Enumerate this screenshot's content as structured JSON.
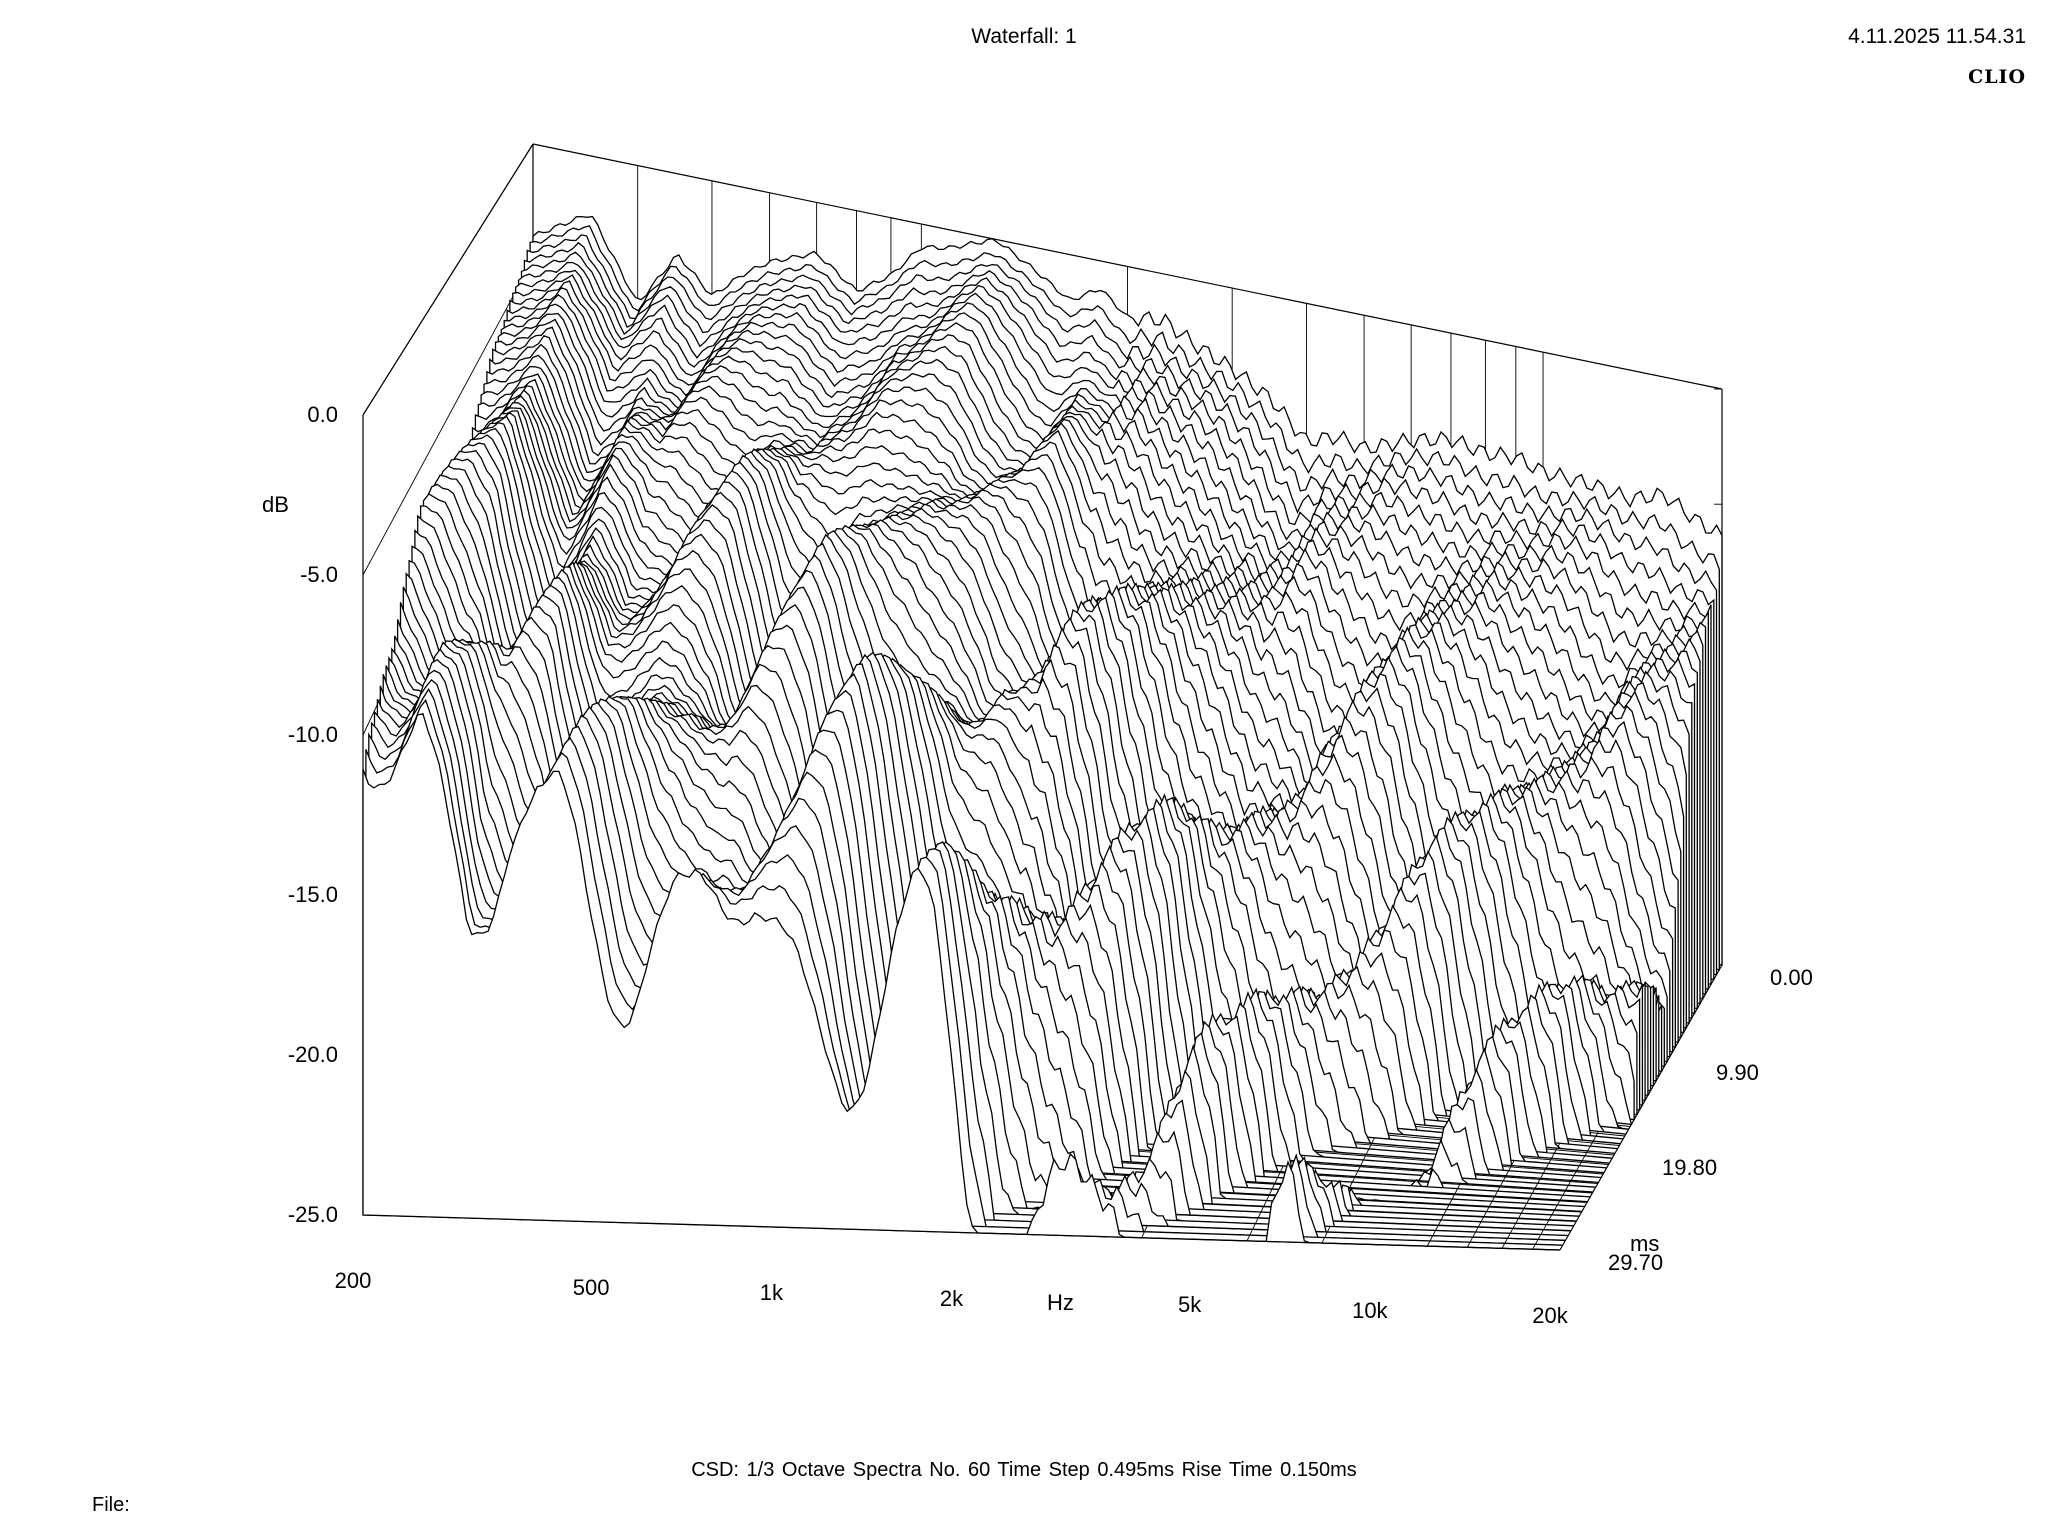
{
  "header": {
    "title": "Waterfall: 1",
    "datetime": "4.11.2025 11.54.31",
    "brand": "CLIO"
  },
  "footer": {
    "csd_info": "CSD:   1/3 Octave   Spectra No. 60   Time Step 0.495ms   Rise Time 0.150ms",
    "file_label": "File:"
  },
  "chart_data": {
    "type": "waterfall",
    "y_axis": {
      "label": "dB",
      "ticks": [
        "0.0",
        "-5.0",
        "-10.0",
        "-15.0",
        "-20.0",
        "-25.0"
      ],
      "values": [
        0,
        -5,
        -10,
        -15,
        -20,
        -25
      ],
      "range": [
        -25,
        0
      ]
    },
    "x_axis": {
      "label": "Hz",
      "scale": "log",
      "ticks": [
        "200",
        "500",
        "1k",
        "2k",
        "5k",
        "10k",
        "20k"
      ],
      "values": [
        200,
        500,
        1000,
        2000,
        5000,
        10000,
        20000
      ],
      "range": [
        200,
        20000
      ]
    },
    "z_axis": {
      "label": "ms",
      "ticks": [
        "0.00",
        "9.90",
        "19.80",
        "29.70"
      ],
      "values": [
        0,
        9.9,
        19.8,
        29.7
      ],
      "range": [
        0,
        29.7
      ]
    },
    "spectra_count": 60,
    "time_step_ms": 0.495,
    "rise_time_ms": 0.15,
    "smoothing": "1/3 Octave",
    "first_spectrum": {
      "freq_hz": [
        200,
        250,
        300,
        350,
        400,
        450,
        500,
        600,
        700,
        800,
        900,
        1000,
        1200,
        1400,
        1600,
        1800,
        2000,
        2300,
        2600,
        3000,
        3500,
        4000,
        4500,
        5000,
        6000,
        7000,
        8000,
        9000,
        10000,
        12000,
        14000,
        16000,
        18000,
        20000
      ],
      "level_db": [
        -4.0,
        -2.5,
        -6.0,
        -3.5,
        -5.0,
        -3.8,
        -3.0,
        -2.2,
        -3.5,
        -2.5,
        -1.0,
        -0.8,
        0.0,
        -1.0,
        -2.0,
        -1.2,
        -2.2,
        -2.0,
        -2.8,
        -3.5,
        -4.5,
        -6.0,
        -5.5,
        -5.8,
        -5.0,
        -4.6,
        -4.9,
        -4.8,
        -5.2,
        -5.3,
        -5.6,
        -5.1,
        -5.9,
        -6.4
      ]
    }
  }
}
